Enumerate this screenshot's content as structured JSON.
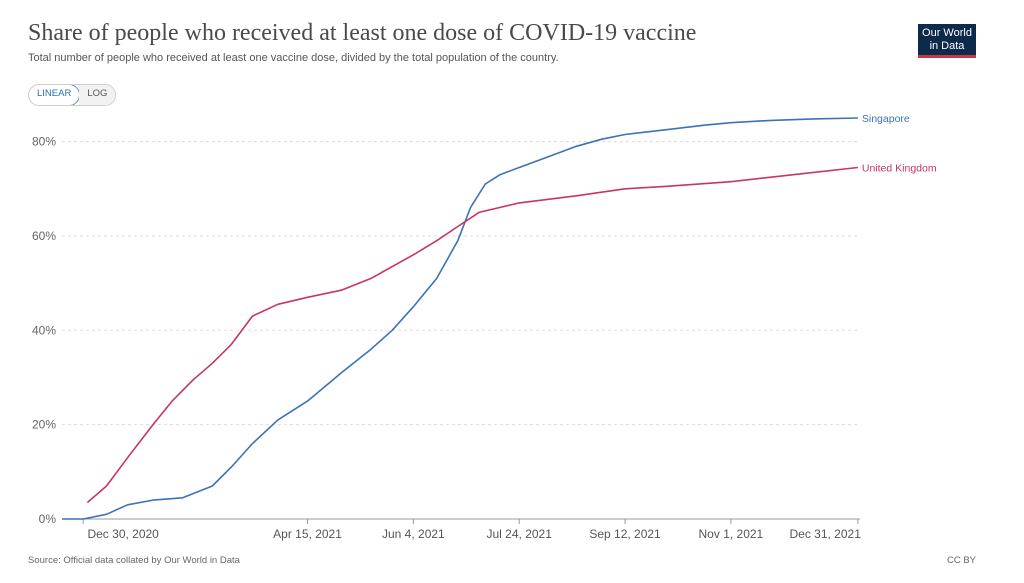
{
  "header": {
    "title": "Share of people who received at least one dose of COVID-19 vaccine",
    "subtitle": "Total number of people who received at least one vaccine dose, divided by the total population of the country."
  },
  "logo": {
    "line1": "Our World",
    "line2": "in Data"
  },
  "controls": {
    "linear_label": "LINEAR",
    "log_label": "LOG",
    "selected": "LINEAR"
  },
  "footer": {
    "source": "Source: Official data collated by Our World in Data",
    "license": "CC BY"
  },
  "colors": {
    "singapore": "#3b72b8",
    "united_kingdom": "#c8336b",
    "grid": "#dddddd"
  },
  "chart_data": {
    "type": "line",
    "x_type": "date",
    "xlim": [
      "2020-12-20",
      "2022-01-01"
    ],
    "ylim": [
      0,
      85
    ],
    "y_ticks": [
      0,
      20,
      40,
      60,
      80
    ],
    "y_tick_labels": [
      "0%",
      "20%",
      "40%",
      "60%",
      "80%"
    ],
    "x_ticks": [
      "2020-12-30",
      "2021-04-15",
      "2021-06-04",
      "2021-07-24",
      "2021-09-12",
      "2021-11-01",
      "2021-12-31"
    ],
    "x_tick_labels": [
      "Dec 30, 2020",
      "Apr 15, 2021",
      "Jun 4, 2021",
      "Jul 24, 2021",
      "Sep 12, 2021",
      "Nov 1, 2021",
      "Dec 31, 2021"
    ],
    "grid": true,
    "legend": "right-end labels",
    "series": [
      {
        "name": "Singapore",
        "x": [
          "2020-12-20",
          "2020-12-30",
          "2021-01-10",
          "2021-01-20",
          "2021-02-01",
          "2021-02-15",
          "2021-03-01",
          "2021-03-10",
          "2021-03-20",
          "2021-04-01",
          "2021-04-15",
          "2021-05-01",
          "2021-05-15",
          "2021-05-25",
          "2021-06-04",
          "2021-06-15",
          "2021-06-25",
          "2021-07-01",
          "2021-07-08",
          "2021-07-15",
          "2021-07-24",
          "2021-08-05",
          "2021-08-20",
          "2021-09-01",
          "2021-09-12",
          "2021-10-01",
          "2021-10-20",
          "2021-11-01",
          "2021-11-20",
          "2021-12-10",
          "2021-12-31"
        ],
        "values": [
          0,
          0,
          1,
          3,
          4,
          4.5,
          7,
          11,
          16,
          21,
          25,
          31,
          36,
          40,
          45,
          51,
          59,
          66,
          71,
          73,
          74.5,
          76.5,
          79,
          80.5,
          81.5,
          82.5,
          83.5,
          84,
          84.5,
          84.8,
          85
        ]
      },
      {
        "name": "United Kingdom",
        "x": [
          "2021-01-01",
          "2021-01-10",
          "2021-01-20",
          "2021-02-01",
          "2021-02-10",
          "2021-02-20",
          "2021-03-01",
          "2021-03-10",
          "2021-03-20",
          "2021-04-01",
          "2021-04-15",
          "2021-05-01",
          "2021-05-15",
          "2021-06-04",
          "2021-06-15",
          "2021-06-25",
          "2021-07-05",
          "2021-07-24",
          "2021-08-20",
          "2021-09-12",
          "2021-10-01",
          "2021-11-01",
          "2021-12-01",
          "2021-12-31"
        ],
        "values": [
          3.5,
          7,
          13,
          20,
          25,
          29.5,
          33,
          37,
          43,
          45.5,
          47,
          48.5,
          51,
          56,
          59,
          62,
          65,
          67,
          68.5,
          70,
          70.5,
          71.5,
          73,
          74.5
        ]
      }
    ]
  }
}
